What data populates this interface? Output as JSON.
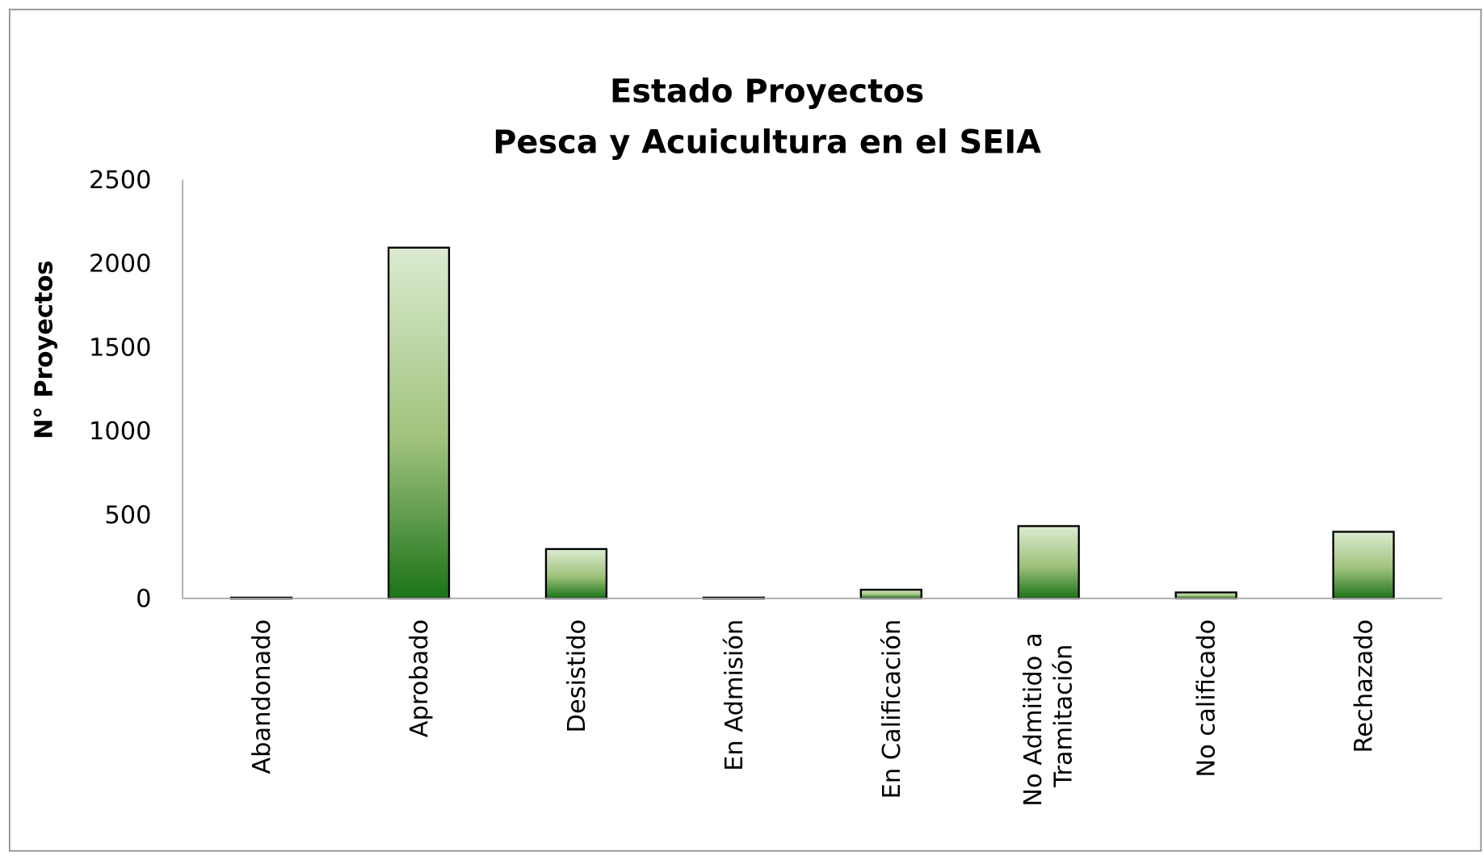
{
  "chart_data": {
    "type": "bar",
    "title": "Estado Proyectos",
    "subtitle": "Pesca y Acuicultura en el SEIA",
    "y_label": "N° Proyectos",
    "categories": [
      "Abandonado",
      "Aprobado",
      "Desistido",
      "En Admisión",
      "En Calificación",
      "No Admitido a Tramitación",
      "No calificado",
      "Rechazado"
    ],
    "values": [
      5,
      2094,
      295,
      5,
      52,
      432,
      36,
      398
    ],
    "color": "#1e7a1e",
    "ylim": [
      0,
      2500
    ],
    "yticks": [
      0,
      500,
      1000,
      1500,
      2000,
      2500
    ],
    "grid": false
  }
}
